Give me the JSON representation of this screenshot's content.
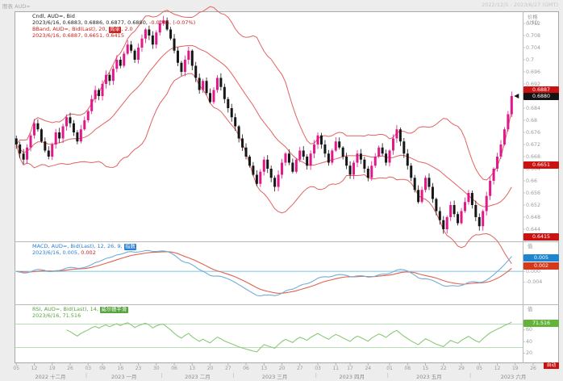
{
  "window": {
    "title": "图表 AUD=",
    "date_range": "2022/12/5 - 2023/6/27 (GMT)"
  },
  "price_panel": {
    "legend_line1": "Cndl, AUD=, Bid",
    "legend_line2_black": "2023/6/16, 0.6883, 0.6886, 0.6877, 0.6880,",
    "legend_line2_red": "-0.0005, (-0.07%)",
    "bband_prefix": "BBand, AUD=, Bid(Last), 20,",
    "bband_chip": "简单",
    "bband_suffix": ", 2.0",
    "bband_values": "2023/6/16, 0.6887, 0.6651, 0.6415",
    "axis_title_line1": "价格",
    "axis_title_line2": "USD",
    "ticks": [
      {
        "v": 0.712,
        "t": "0.712"
      },
      {
        "v": 0.708,
        "t": "0.708"
      },
      {
        "v": 0.704,
        "t": "0.704"
      },
      {
        "v": 0.7,
        "t": "0.7"
      },
      {
        "v": 0.696,
        "t": "0.696"
      },
      {
        "v": 0.692,
        "t": "0.692"
      },
      {
        "v": 0.688,
        "t": "0.688"
      },
      {
        "v": 0.684,
        "t": "0.684"
      },
      {
        "v": 0.68,
        "t": "0.68"
      },
      {
        "v": 0.676,
        "t": "0.676"
      },
      {
        "v": 0.672,
        "t": "0.672"
      },
      {
        "v": 0.668,
        "t": "0.668"
      },
      {
        "v": 0.664,
        "t": "0.664"
      },
      {
        "v": 0.66,
        "t": "0.66"
      },
      {
        "v": 0.656,
        "t": "0.656"
      },
      {
        "v": 0.652,
        "t": "0.652"
      },
      {
        "v": 0.648,
        "t": "0.648"
      },
      {
        "v": 0.644,
        "t": "0.644"
      }
    ],
    "badges": {
      "upper": {
        "label": "0.6887",
        "value": 0.6887,
        "bg": "#cc1111"
      },
      "last": {
        "label": "0.6880",
        "value": 0.688,
        "bg": "#141414"
      },
      "middle": {
        "label": "0.6651",
        "value": 0.6651,
        "bg": "#cc1111"
      },
      "lower": {
        "label": "0.6415",
        "value": 0.6415,
        "bg": "#cc1111"
      }
    }
  },
  "macd_panel": {
    "legend_prefix": "MACD, AUD=, Bid(Last), 12, 26, 9,",
    "legend_chip": "指数",
    "legend_values_blue": "2023/6/16, 0.005,",
    "legend_values_red": "0.002",
    "axis_title": "值",
    "ticks": [
      {
        "v": 0,
        "t": "0.000"
      },
      {
        "v": -0.004,
        "t": "-0.004"
      }
    ],
    "badges": {
      "macd": {
        "label": "0.005",
        "value": 0.005,
        "bg": "#1e86d0"
      },
      "signal": {
        "label": "0.002",
        "value": 0.002,
        "bg": "#d6381c"
      }
    }
  },
  "rsi_panel": {
    "legend_prefix": "RSI, AUD=, Bid(Last), 14,",
    "legend_chip": "威尔德平滑",
    "legend_values": "2023/6/16, 71.516",
    "axis_title": "值",
    "ticks": [
      {
        "v": 60,
        "t": "60"
      },
      {
        "v": 40,
        "t": "40"
      },
      {
        "v": 20,
        "t": "20"
      }
    ],
    "badge": {
      "label": "71.516",
      "value": 71.516,
      "bg": "#64b33a"
    },
    "ref_lines": [
      70,
      30
    ]
  },
  "corner_badge": "自动",
  "x_axis": {
    "months": [
      {
        "label": "2022 十二月",
        "start": 0,
        "end": 20,
        "days": [
          [
            0,
            "05"
          ],
          [
            5,
            "12"
          ],
          [
            10,
            "19"
          ],
          [
            15,
            "26"
          ]
        ]
      },
      {
        "label": "2023 一月",
        "start": 20,
        "end": 41,
        "days": [
          [
            20,
            "03"
          ],
          [
            24,
            "09"
          ],
          [
            29,
            "16"
          ],
          [
            34,
            "23"
          ],
          [
            39,
            "30"
          ]
        ]
      },
      {
        "label": "2023 二月",
        "start": 41,
        "end": 61,
        "days": [
          [
            44,
            "06"
          ],
          [
            49,
            "13"
          ],
          [
            54,
            "20"
          ],
          [
            59,
            "27"
          ]
        ]
      },
      {
        "label": "2023 三月",
        "start": 61,
        "end": 84,
        "days": [
          [
            64,
            "06"
          ],
          [
            69,
            "13"
          ],
          [
            74,
            "20"
          ],
          [
            79,
            "27"
          ]
        ]
      },
      {
        "label": "2023 四月",
        "start": 84,
        "end": 104,
        "days": [
          [
            84,
            "03"
          ],
          [
            89,
            "11"
          ],
          [
            93,
            "17"
          ],
          [
            98,
            "24"
          ]
        ]
      },
      {
        "label": "2023 五月",
        "start": 104,
        "end": 127,
        "days": [
          [
            104,
            "01"
          ],
          [
            109,
            "08"
          ],
          [
            114,
            "15"
          ],
          [
            119,
            "22"
          ],
          [
            124,
            "29"
          ]
        ]
      },
      {
        "label": "2023 六月",
        "start": 127,
        "end": 151,
        "days": [
          [
            129,
            "05"
          ],
          [
            134,
            "12"
          ],
          [
            139,
            "19"
          ],
          [
            144,
            "26"
          ]
        ]
      }
    ]
  },
  "chart_data": {
    "type": "candlestick",
    "symbol": "AUD=",
    "field": "Bid",
    "interval": "daily",
    "title": "Cndl, AUD=, Bid",
    "x_range": [
      "2022-12-05",
      "2023-06-27"
    ],
    "y_range": [
      0.64,
      0.716
    ],
    "last_candle": {
      "date": "2023/6/16",
      "open": 0.6883,
      "high": 0.6886,
      "low": 0.6877,
      "close": 0.688,
      "net_change": -0.0005,
      "pct_change": "-0.07%"
    },
    "closes": [
      0.672,
      0.669,
      0.667,
      0.671,
      0.675,
      0.679,
      0.677,
      0.673,
      0.67,
      0.668,
      0.672,
      0.676,
      0.674,
      0.678,
      0.681,
      0.679,
      0.676,
      0.673,
      0.677,
      0.68,
      0.683,
      0.687,
      0.69,
      0.688,
      0.692,
      0.695,
      0.693,
      0.697,
      0.7,
      0.698,
      0.702,
      0.705,
      0.703,
      0.7,
      0.704,
      0.707,
      0.71,
      0.708,
      0.705,
      0.709,
      0.712,
      0.713,
      0.71,
      0.707,
      0.703,
      0.699,
      0.696,
      0.7,
      0.703,
      0.698,
      0.694,
      0.69,
      0.693,
      0.689,
      0.686,
      0.69,
      0.694,
      0.691,
      0.687,
      0.684,
      0.681,
      0.678,
      0.674,
      0.671,
      0.668,
      0.665,
      0.662,
      0.659,
      0.663,
      0.667,
      0.664,
      0.661,
      0.658,
      0.662,
      0.666,
      0.669,
      0.666,
      0.663,
      0.667,
      0.67,
      0.668,
      0.665,
      0.669,
      0.672,
      0.675,
      0.672,
      0.669,
      0.666,
      0.67,
      0.673,
      0.671,
      0.668,
      0.665,
      0.662,
      0.666,
      0.669,
      0.667,
      0.664,
      0.661,
      0.665,
      0.668,
      0.671,
      0.669,
      0.666,
      0.67,
      0.674,
      0.677,
      0.673,
      0.669,
      0.665,
      0.661,
      0.657,
      0.653,
      0.657,
      0.661,
      0.658,
      0.654,
      0.65,
      0.647,
      0.644,
      0.648,
      0.652,
      0.649,
      0.646,
      0.65,
      0.653,
      0.656,
      0.652,
      0.648,
      0.645,
      0.65,
      0.655,
      0.66,
      0.664,
      0.668,
      0.672,
      0.677,
      0.682,
      0.688
    ],
    "indicators": [
      {
        "type": "bollinger",
        "period": 20,
        "ma_type": "简单",
        "stdev": 2.0,
        "last_values": {
          "upper": 0.6887,
          "middle": 0.6651,
          "lower": 0.6415
        }
      },
      {
        "type": "MACD",
        "fast": 12,
        "slow": 26,
        "signal_period": 9,
        "ma_type": "指数",
        "last_values": {
          "macd": 0.005,
          "signal": 0.002
        }
      },
      {
        "type": "RSI",
        "period": 14,
        "smoothing": "威尔德平滑",
        "last_value": 71.516,
        "ref_lines": [
          70,
          30
        ]
      }
    ],
    "colors": {
      "candle_up": "#e01889",
      "candle_down": "#161616",
      "bollinger": "#e2625f",
      "macd_line": "#74add6",
      "macd_signal": "#e2614f",
      "macd_zero_line": "#a6d9ec",
      "rsi_line": "#8cc878",
      "rsi_ref": "#9fd49f"
    }
  }
}
